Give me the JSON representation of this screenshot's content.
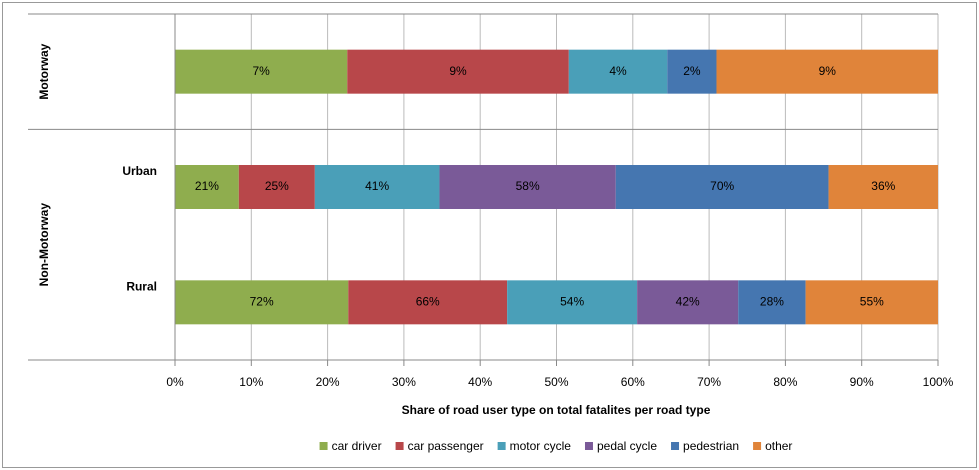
{
  "chart_data": {
    "type": "bar",
    "orientation": "horizontal",
    "stacking": "percent",
    "x_label": "Share of road user type on total fatalites per road type",
    "groups": [
      {
        "name": "Motorway",
        "categories": [
          null
        ]
      },
      {
        "name": "Non-Motorway",
        "categories": [
          "Urban",
          "Rural"
        ]
      }
    ],
    "xlim": [
      0,
      100
    ],
    "xticks": [
      {
        "value": 0,
        "label": "0%"
      },
      {
        "value": 10,
        "label": "10%"
      },
      {
        "value": 20,
        "label": "20%"
      },
      {
        "value": 30,
        "label": "30%"
      },
      {
        "value": 40,
        "label": "40%"
      },
      {
        "value": 50,
        "label": "50%"
      },
      {
        "value": 60,
        "label": "60%"
      },
      {
        "value": 70,
        "label": "70%"
      },
      {
        "value": 80,
        "label": "80%"
      },
      {
        "value": 90,
        "label": "90%"
      },
      {
        "value": 100,
        "label": "100%"
      }
    ],
    "grid": true,
    "legend": "bottom",
    "series": [
      {
        "name": "car driver",
        "color": "#8fad4e",
        "values": [
          7,
          21,
          72
        ],
        "value_labels": [
          "7%",
          "21%",
          "72%"
        ]
      },
      {
        "name": "car passenger",
        "color": "#b8474a",
        "values": [
          9,
          25,
          66
        ],
        "value_labels": [
          "9%",
          "25%",
          "66%"
        ]
      },
      {
        "name": "motor cycle",
        "color": "#4a9fb8",
        "values": [
          4,
          41,
          54
        ],
        "value_labels": [
          "4%",
          "41%",
          "54%"
        ]
      },
      {
        "name": "pedal cycle",
        "color": "#7a5a98",
        "values": [
          null,
          58,
          42
        ],
        "value_labels": [
          null,
          "58%",
          "42%"
        ]
      },
      {
        "name": "pedestrian",
        "color": "#4576b0",
        "values": [
          2,
          70,
          28
        ],
        "value_labels": [
          "2%",
          "70%",
          "28%"
        ]
      },
      {
        "name": "other",
        "color": "#e0843a",
        "values": [
          9,
          36,
          55
        ],
        "value_labels": [
          "9%",
          "36%",
          "55%"
        ]
      }
    ]
  }
}
